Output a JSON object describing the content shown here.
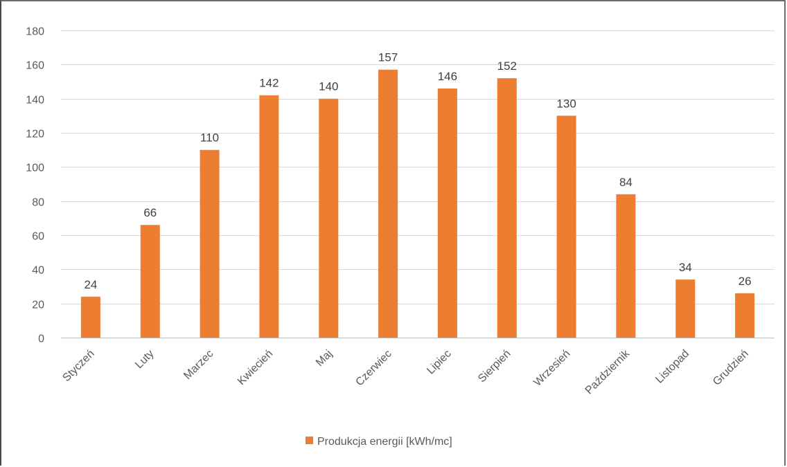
{
  "chart_data": {
    "type": "bar",
    "categories": [
      "Styczeń",
      "Luty",
      "Marzec",
      "Kwiecień",
      "Maj",
      "Czerwiec",
      "Lipiec",
      "Sierpień",
      "Wrzesień",
      "Październik",
      "Listopad",
      "Grudzień"
    ],
    "series": [
      {
        "name": "Produkcja energii [kWh/mc]",
        "values": [
          24,
          66,
          110,
          142,
          140,
          157,
          146,
          152,
          130,
          84,
          34,
          26
        ],
        "color": "#ED7D31"
      }
    ],
    "title": "",
    "xlabel": "",
    "ylabel": "",
    "ylim": [
      0,
      180
    ],
    "yticks": [
      0,
      20,
      40,
      60,
      80,
      100,
      120,
      140,
      160,
      180
    ],
    "data_labels": true,
    "grid": true,
    "gridline_color": "#D9D9D9",
    "legend_position": "bottom",
    "category_label_rotation": "-45deg"
  }
}
